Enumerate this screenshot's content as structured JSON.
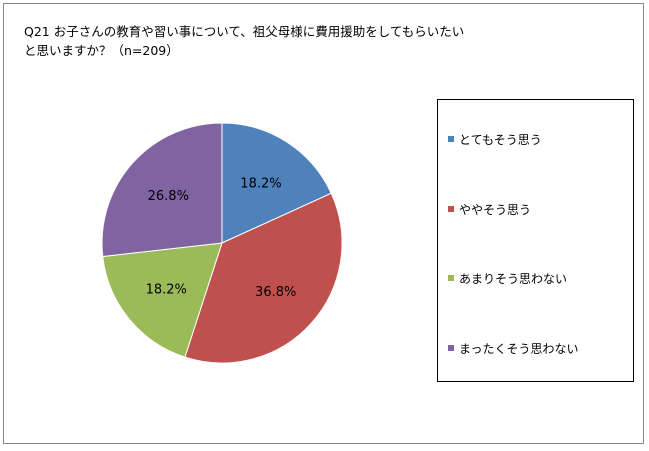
{
  "title": {
    "line1": "Q21 お子さんの教育や習い事について、祖父母様に費用援助をしてもらいたい",
    "line2": "と思いますか？（n=209）"
  },
  "colors": {
    "series_1": "#4F81BD",
    "series_2": "#C0504D",
    "series_3": "#9BBB59",
    "series_4": "#8064A2",
    "frame_border": "#868686"
  },
  "legend": {
    "items": [
      "とてもそう思う",
      "ややそう思う",
      "あまりそう思わない",
      "まったくそう思わない"
    ],
    "placement": "right"
  },
  "chart_data": {
    "type": "pie",
    "title": "Q21 お子さんの教育や習い事について、祖父母様に費用援助をしてもらいたいと思いますか？（n=209）",
    "categories": [
      "とてもそう思う",
      "ややそう思う",
      "あまりそう思わない",
      "まったくそう思わない"
    ],
    "values": [
      18.2,
      36.8,
      18.2,
      26.8
    ],
    "labels": [
      "18.2%",
      "36.8%",
      "18.2%",
      "26.8%"
    ],
    "start": "12 o'clock",
    "direction": "clockwise"
  }
}
